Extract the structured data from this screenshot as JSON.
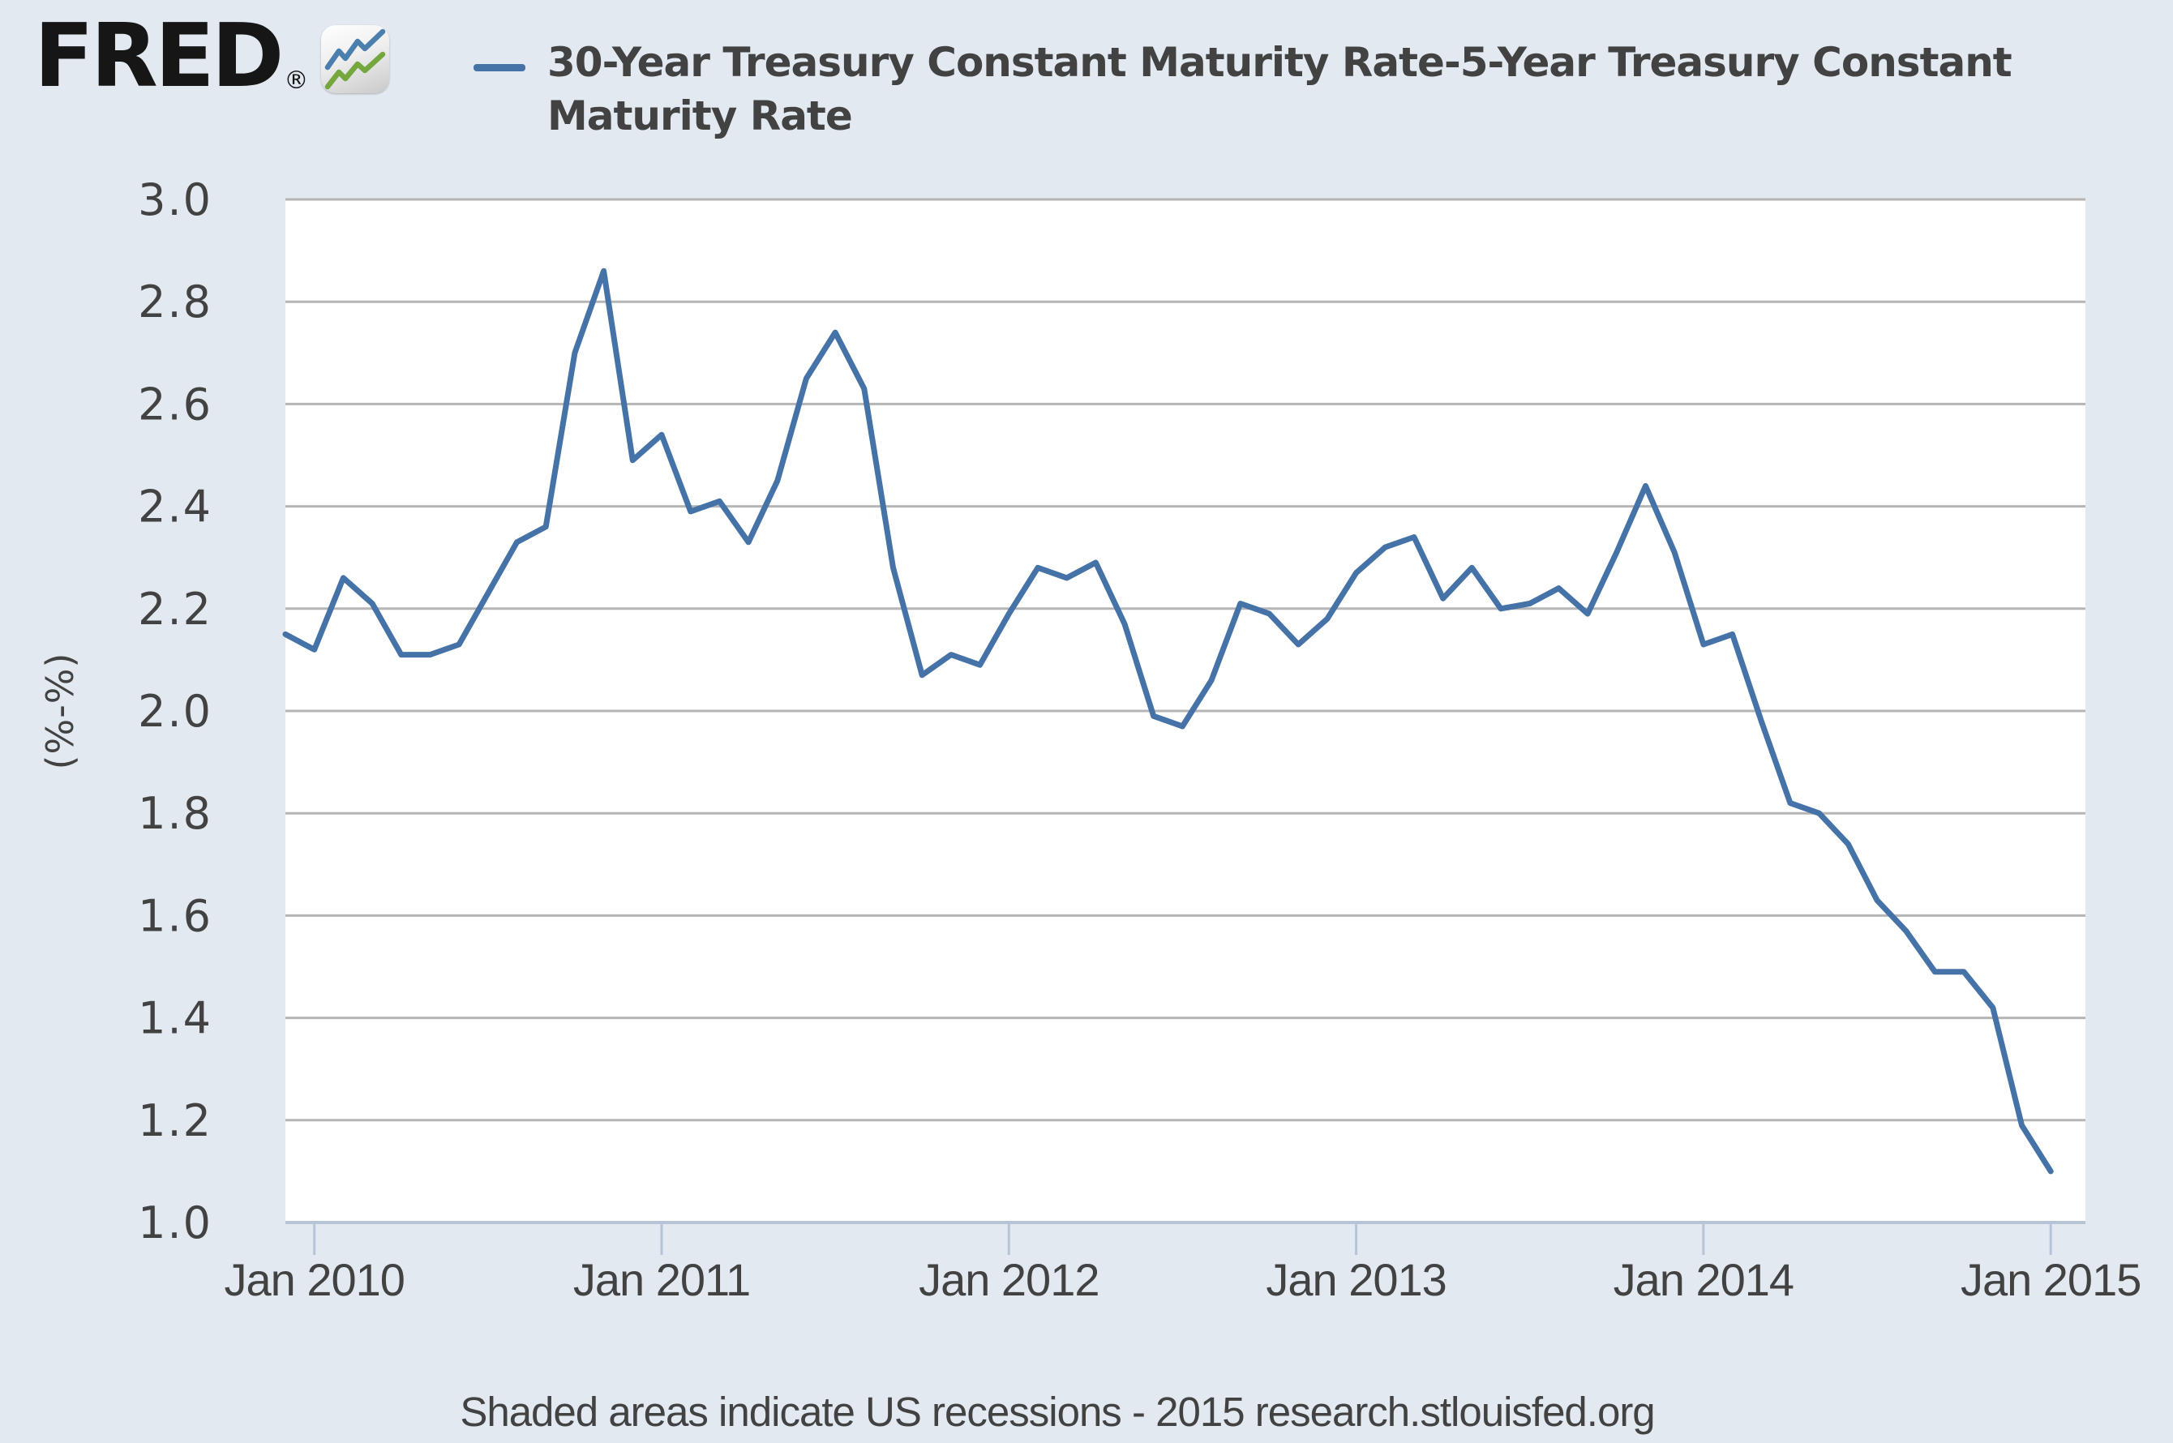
{
  "header": {
    "logo_text": "FRED",
    "registered_mark": "®",
    "logo_icon": "fred-sparkline-icon"
  },
  "legend": {
    "label": "30-Year Treasury Constant Maturity Rate-5-Year Treasury Constant Maturity Rate",
    "label_lines": [
      "30-Year Treasury Constant Maturity Rate-5-Year Treasury Constant",
      "Maturity Rate"
    ]
  },
  "footer": {
    "text": "Shaded areas indicate US recessions - 2015 research.stlouisfed.org"
  },
  "colors": {
    "background": "#e2e9f0",
    "plot_background": "#ffffff",
    "gridline": "#b5b5b5",
    "axis_line": "#b7c4d7",
    "text": "#424242",
    "series": "#4572a7",
    "logo": "#161616",
    "icon_blue": "#4b7fae",
    "icon_green": "#74a73e"
  },
  "chart_data": {
    "type": "line",
    "title": "30-Year Treasury Constant Maturity Rate-5-Year Treasury Constant Maturity Rate",
    "xlabel": "",
    "ylabel": "(%-%)",
    "ylim": [
      1.0,
      3.0
    ],
    "grid": "horizontal",
    "legend_position": "top",
    "y_ticks": [
      3.0,
      2.8,
      2.6,
      2.4,
      2.2,
      2.0,
      1.8,
      1.6,
      1.4,
      1.2,
      1.0
    ],
    "y_tick_labels": [
      "3.0",
      "2.8",
      "2.6",
      "2.4",
      "2.2",
      "2.0",
      "1.8",
      "1.6",
      "1.4",
      "1.2",
      "1.0"
    ],
    "x_tick_labels": [
      "Jan 2010",
      "Jan 2011",
      "Jan 2012",
      "Jan 2013",
      "Jan 2014",
      "Jan 2015"
    ],
    "x_tick_month_index": [
      1,
      13,
      25,
      37,
      49,
      61
    ],
    "x": [
      "2009-12",
      "2010-01",
      "2010-02",
      "2010-03",
      "2010-04",
      "2010-05",
      "2010-06",
      "2010-07",
      "2010-08",
      "2010-09",
      "2010-10",
      "2010-11",
      "2010-12",
      "2011-01",
      "2011-02",
      "2011-03",
      "2011-04",
      "2011-05",
      "2011-06",
      "2011-07",
      "2011-08",
      "2011-09",
      "2011-10",
      "2011-11",
      "2011-12",
      "2012-01",
      "2012-02",
      "2012-03",
      "2012-04",
      "2012-05",
      "2012-06",
      "2012-07",
      "2012-08",
      "2012-09",
      "2012-10",
      "2012-11",
      "2012-12",
      "2013-01",
      "2013-02",
      "2013-03",
      "2013-04",
      "2013-05",
      "2013-06",
      "2013-07",
      "2013-08",
      "2013-09",
      "2013-10",
      "2013-11",
      "2013-12",
      "2014-01",
      "2014-02",
      "2014-03",
      "2014-04",
      "2014-05",
      "2014-06",
      "2014-07",
      "2014-08",
      "2014-09",
      "2014-10",
      "2014-11",
      "2014-12",
      "2015-01"
    ],
    "series": [
      {
        "name": "30-Year Treasury Constant Maturity Rate-5-Year Treasury Constant Maturity Rate",
        "color": "#4572a7",
        "values": [
          2.15,
          2.12,
          2.26,
          2.21,
          2.11,
          2.11,
          2.13,
          2.23,
          2.33,
          2.36,
          2.7,
          2.86,
          2.49,
          2.54,
          2.39,
          2.41,
          2.33,
          2.45,
          2.65,
          2.74,
          2.63,
          2.28,
          2.07,
          2.11,
          2.09,
          2.19,
          2.28,
          2.26,
          2.29,
          2.17,
          1.99,
          1.97,
          2.06,
          2.21,
          2.19,
          2.13,
          2.18,
          2.27,
          2.32,
          2.34,
          2.22,
          2.28,
          2.2,
          2.21,
          2.24,
          2.19,
          2.31,
          2.44,
          2.31,
          2.13,
          2.15,
          1.98,
          1.82,
          1.8,
          1.74,
          1.63,
          1.57,
          1.49,
          1.49,
          1.42,
          1.19,
          1.1
        ]
      }
    ]
  }
}
